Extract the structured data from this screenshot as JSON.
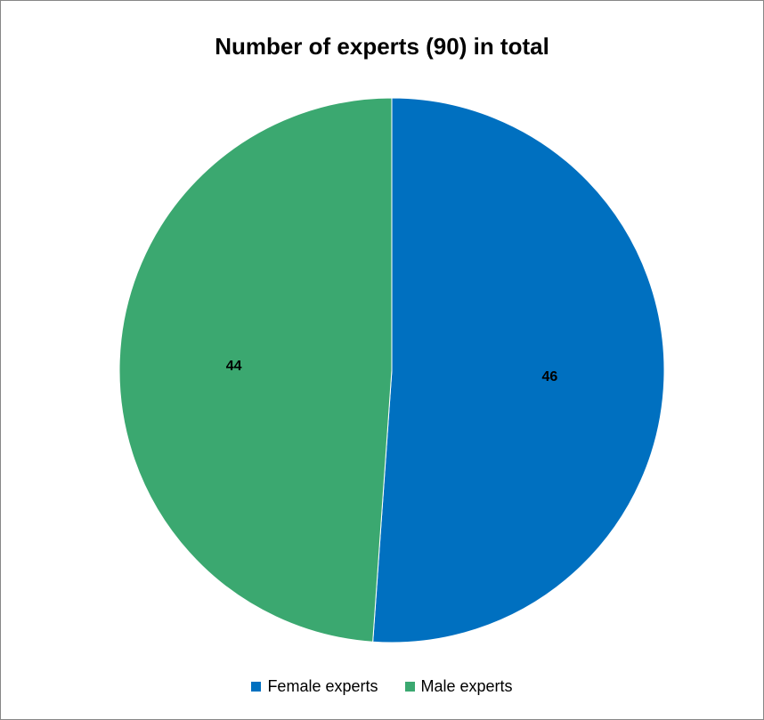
{
  "chart_data": {
    "type": "pie",
    "title": "Number of experts (90) in total",
    "slices": [
      {
        "label": "Female experts",
        "value": 46,
        "color": "#0070C0"
      },
      {
        "label": "Male experts",
        "value": 44,
        "color": "#3BA870"
      }
    ],
    "start_angle": "12 o'clock, clockwise",
    "legend_position": "bottom"
  }
}
